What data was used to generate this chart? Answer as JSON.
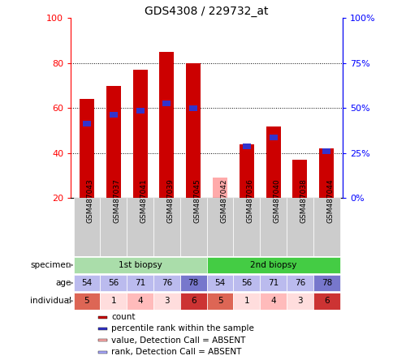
{
  "title": "GDS4308 / 229732_at",
  "samples": [
    "GSM487043",
    "GSM487037",
    "GSM487041",
    "GSM487039",
    "GSM487045",
    "GSM487042",
    "GSM487036",
    "GSM487040",
    "GSM487038",
    "GSM487044"
  ],
  "count_values": [
    64,
    70,
    77,
    85,
    80,
    null,
    44,
    52,
    37,
    42
  ],
  "count_absent": [
    null,
    null,
    null,
    null,
    null,
    29,
    null,
    null,
    null,
    null
  ],
  "percentile_values": [
    53,
    57,
    59,
    62,
    60,
    null,
    43,
    47,
    null,
    41
  ],
  "percentile_absent": [
    null,
    null,
    null,
    null,
    null,
    null,
    null,
    null,
    null,
    null
  ],
  "ylim": [
    20,
    100
  ],
  "y2lim": [
    0,
    100
  ],
  "yticks": [
    20,
    40,
    60,
    80,
    100
  ],
  "y2ticks": [
    0,
    25,
    50,
    75,
    100
  ],
  "bar_color": "#cc0000",
  "bar_absent_color": "#ffaaaa",
  "rank_color": "#3333cc",
  "rank_absent_color": "#aaaaff",
  "specimen_1st": "1st biopsy",
  "specimen_2nd": "2nd biopsy",
  "specimen_1st_color": "#aaddaa",
  "specimen_2nd_color": "#44cc44",
  "age_values": [
    54,
    56,
    71,
    76,
    78,
    54,
    56,
    71,
    76,
    78
  ],
  "age_color_light": "#bbbbee",
  "age_color_dark": "#7777cc",
  "individual_values": [
    5,
    1,
    4,
    3,
    6,
    5,
    1,
    4,
    3,
    6
  ],
  "individual_colors": [
    "#dd6655",
    "#ffdddd",
    "#ffbbbb",
    "#ffdddd",
    "#cc3333",
    "#dd6655",
    "#ffdddd",
    "#ffbbbb",
    "#ffdddd",
    "#cc3333"
  ],
  "age_colors": [
    "#bbbbee",
    "#bbbbee",
    "#bbbbee",
    "#bbbbee",
    "#7777cc",
    "#bbbbee",
    "#bbbbee",
    "#bbbbee",
    "#bbbbee",
    "#7777cc"
  ],
  "legend_items": [
    {
      "color": "#cc0000",
      "label": "count"
    },
    {
      "color": "#3333cc",
      "label": "percentile rank within the sample"
    },
    {
      "color": "#ffaaaa",
      "label": "value, Detection Call = ABSENT"
    },
    {
      "color": "#aaaaff",
      "label": "rank, Detection Call = ABSENT"
    }
  ],
  "bar_width": 0.55
}
